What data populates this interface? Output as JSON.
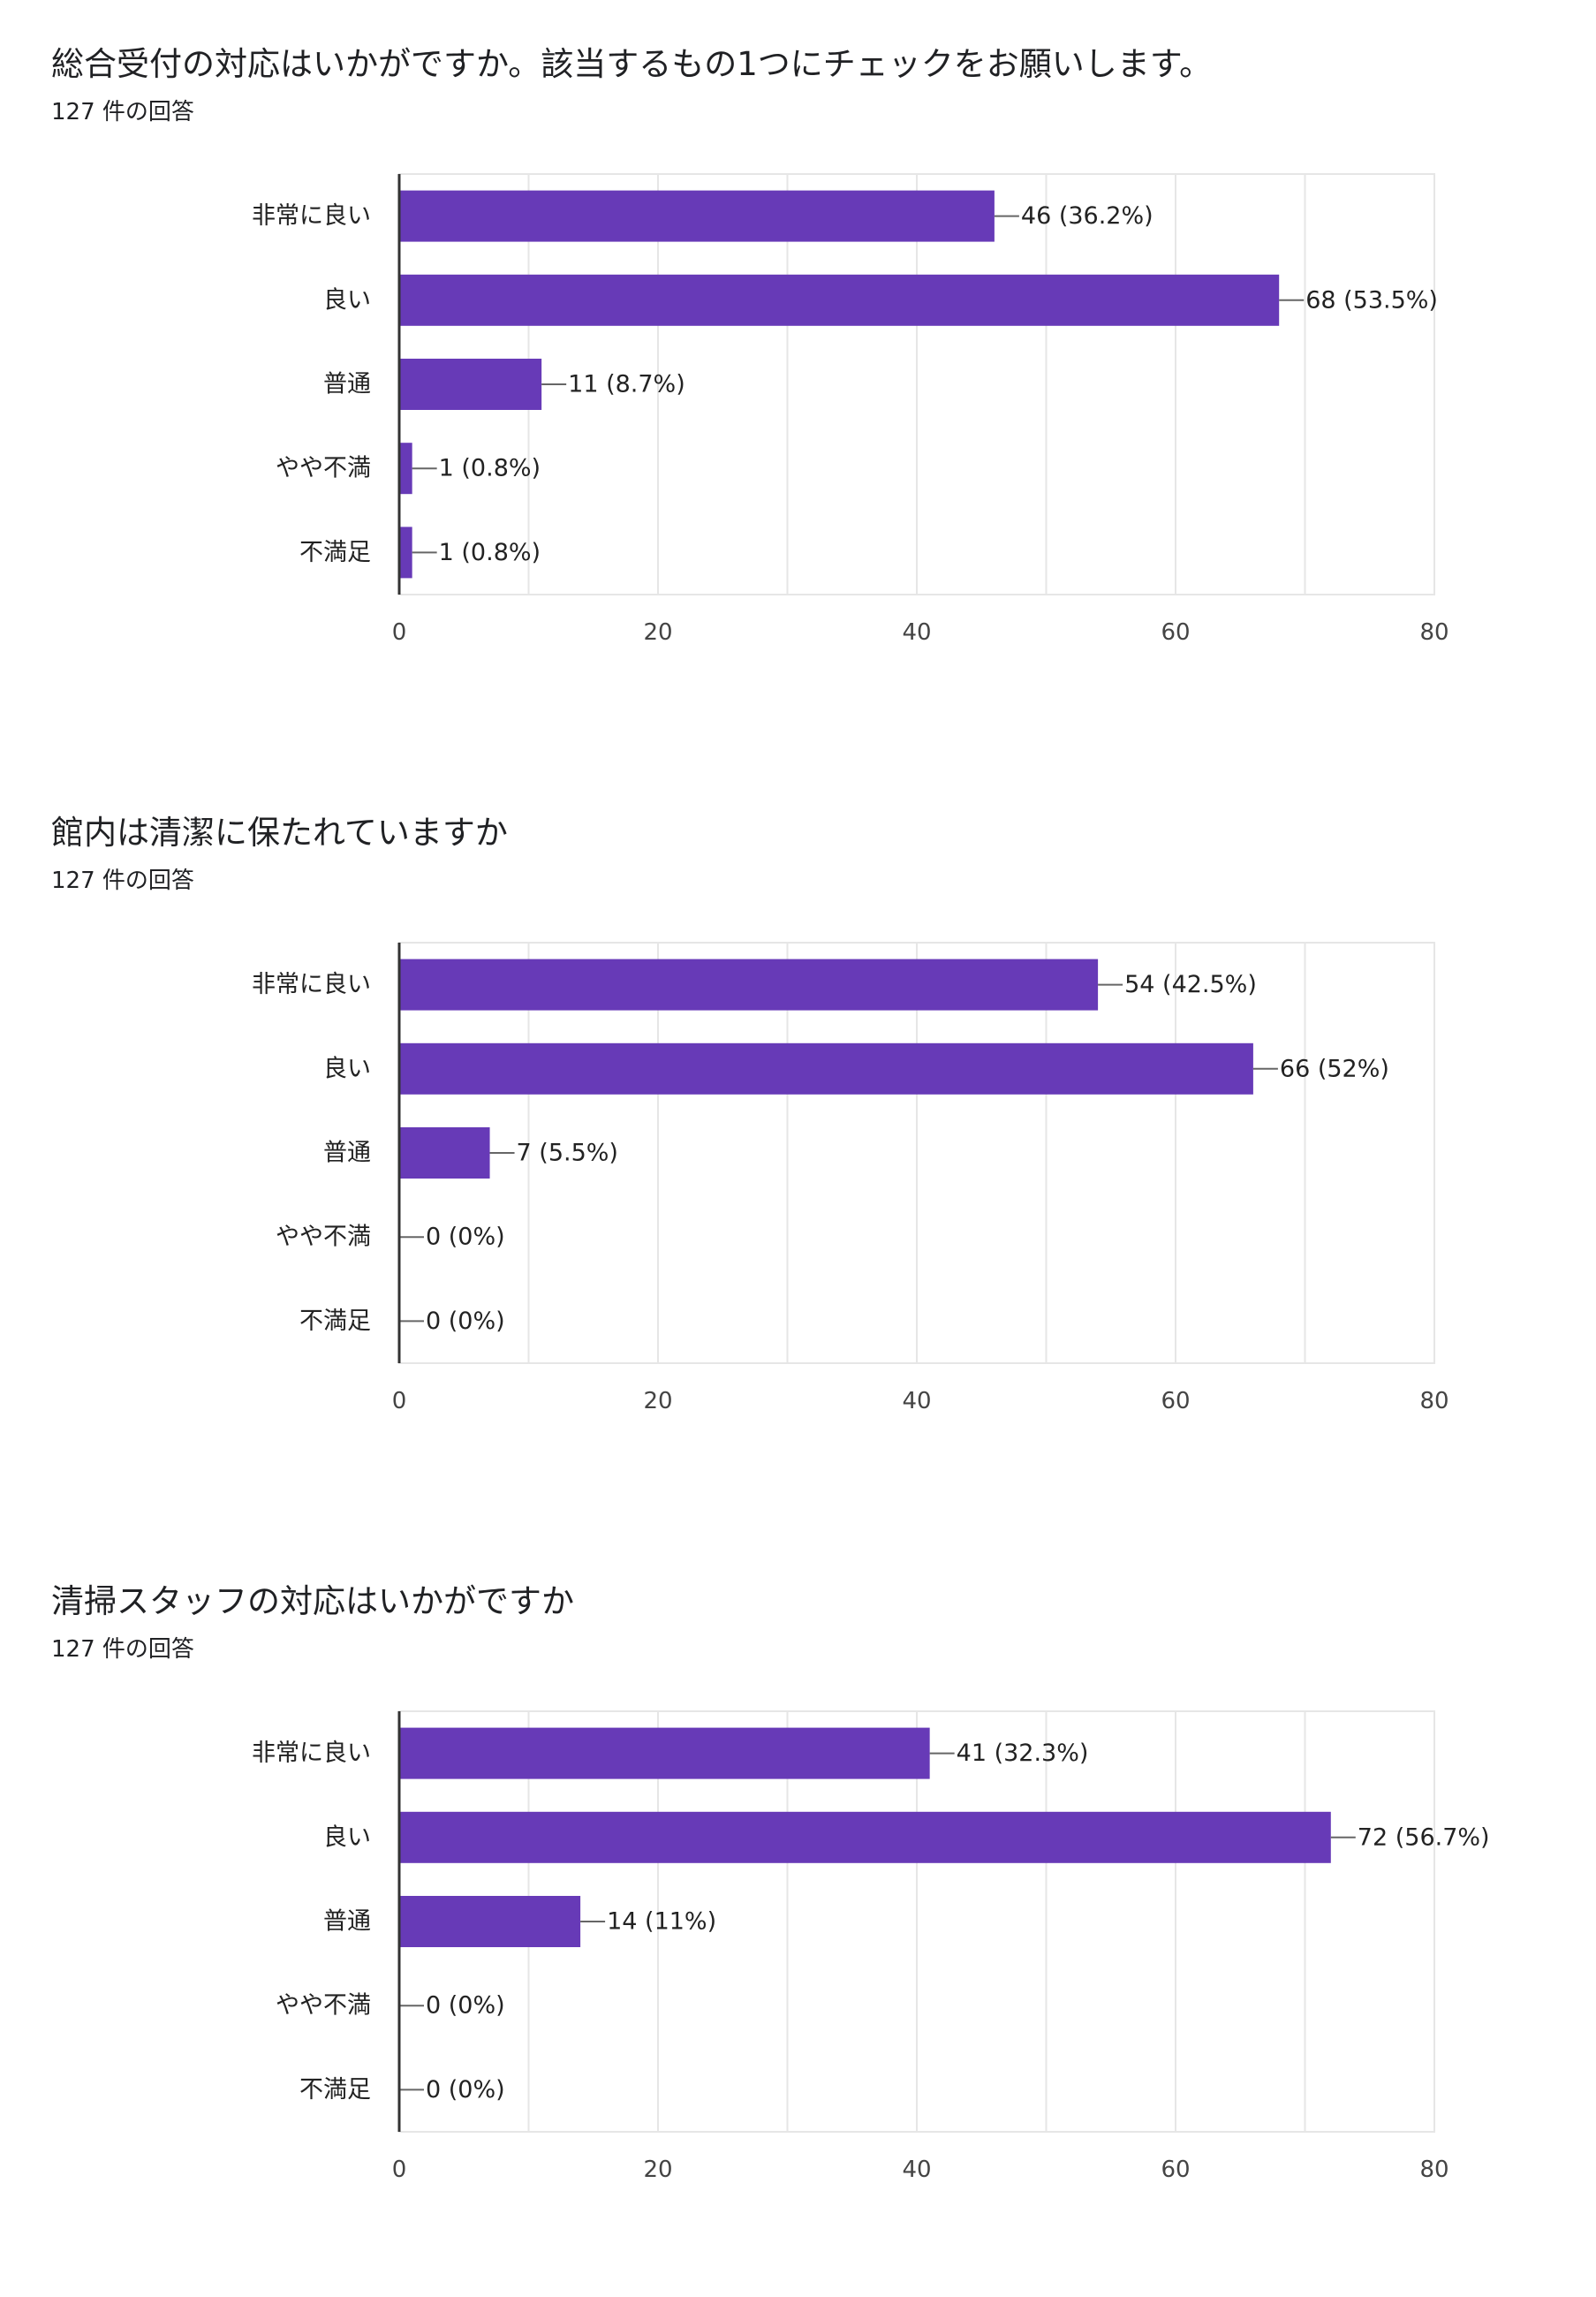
{
  "common": {
    "response_count": "127 件の回答"
  },
  "style": {
    "bar_color": "#673AB7",
    "grid_color": "#E6E6E6",
    "axis_color": "#333333"
  },
  "chart_data": [
    {
      "type": "bar",
      "orientation": "horizontal",
      "title": "総合受付の対応はいかがですか。該当するもの1つにチェックをお願いします。",
      "subtitle": "127 件の回答",
      "categories": [
        "非常に良い",
        "良い",
        "普通",
        "やや不満",
        "不満足"
      ],
      "values": [
        46,
        68,
        11,
        1,
        1
      ],
      "data_labels": [
        "46 (36.2%)",
        "68 (53.5%)",
        "11 (8.7%)",
        "1 (0.8%)",
        "1 (0.8%)"
      ],
      "xlim": [
        0,
        80
      ],
      "xticks": [
        0,
        20,
        40,
        60,
        80
      ],
      "grid": true
    },
    {
      "type": "bar",
      "orientation": "horizontal",
      "title": "館内は清潔に保たれていますか",
      "subtitle": "127 件の回答",
      "categories": [
        "非常に良い",
        "良い",
        "普通",
        "やや不満",
        "不満足"
      ],
      "values": [
        54,
        66,
        7,
        0,
        0
      ],
      "data_labels": [
        "54 (42.5%)",
        "66 (52%)",
        "7 (5.5%)",
        "0 (0%)",
        "0 (0%)"
      ],
      "xlim": [
        0,
        80
      ],
      "xticks": [
        0,
        20,
        40,
        60,
        80
      ],
      "grid": true
    },
    {
      "type": "bar",
      "orientation": "horizontal",
      "title": "清掃スタッフの対応はいかがですか",
      "subtitle": "127 件の回答",
      "categories": [
        "非常に良い",
        "良い",
        "普通",
        "やや不満",
        "不満足"
      ],
      "values": [
        41,
        72,
        14,
        0,
        0
      ],
      "data_labels": [
        "41 (32.3%)",
        "72 (56.7%)",
        "14 (11%)",
        "0 (0%)",
        "0 (0%)"
      ],
      "xlim": [
        0,
        80
      ],
      "xticks": [
        0,
        20,
        40,
        60,
        80
      ],
      "grid": true
    }
  ]
}
